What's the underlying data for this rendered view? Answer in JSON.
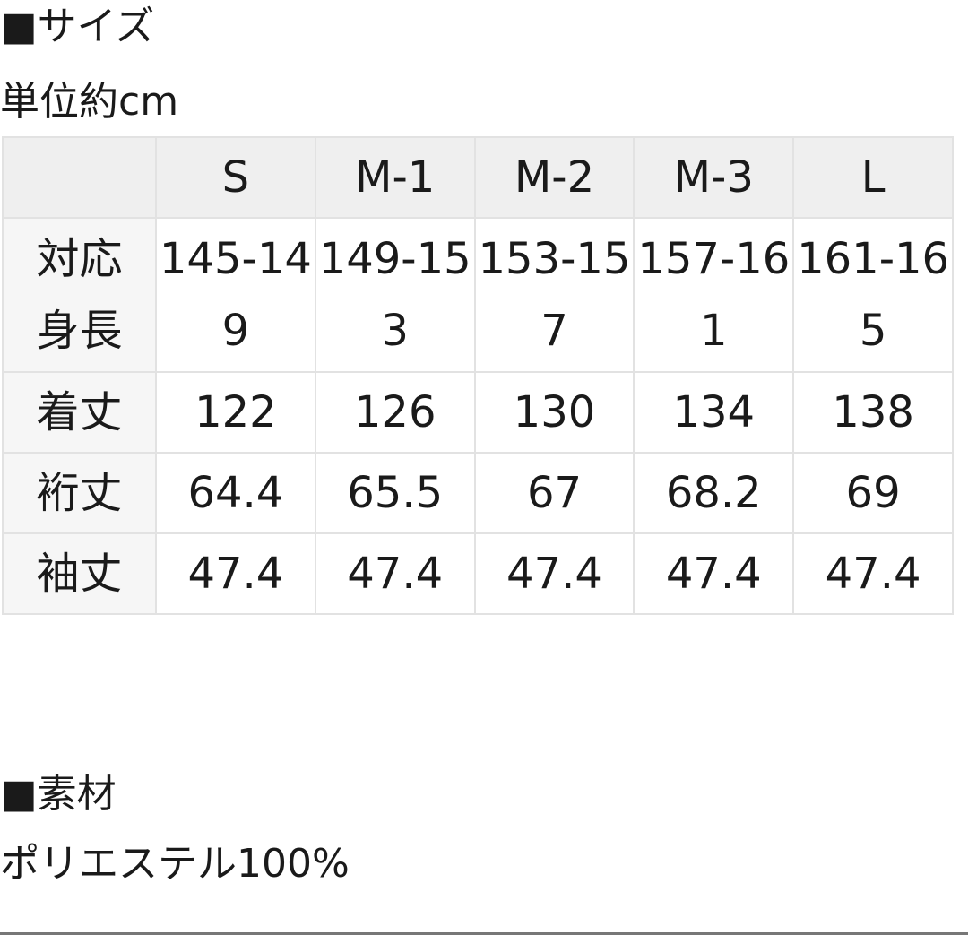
{
  "size_section": {
    "title": "■サイズ",
    "unit": "単位約cm"
  },
  "size_table": {
    "columns": [
      "",
      "S",
      "M-1",
      "M-2",
      "M-3",
      "L"
    ],
    "rows": [
      {
        "label": "対応身長",
        "values": [
          "145-149",
          "149-153",
          "153-157",
          "157-161",
          "161-165"
        ]
      },
      {
        "label": "着丈",
        "values": [
          "122",
          "126",
          "130",
          "134",
          "138"
        ]
      },
      {
        "label": "裄丈",
        "values": [
          "64.4",
          "65.5",
          "67",
          "68.2",
          "69"
        ]
      },
      {
        "label": "袖丈",
        "values": [
          "47.4",
          "47.4",
          "47.4",
          "47.4",
          "47.4"
        ]
      }
    ]
  },
  "material_section": {
    "title": "■素材",
    "value": "ポリエステル100%"
  }
}
